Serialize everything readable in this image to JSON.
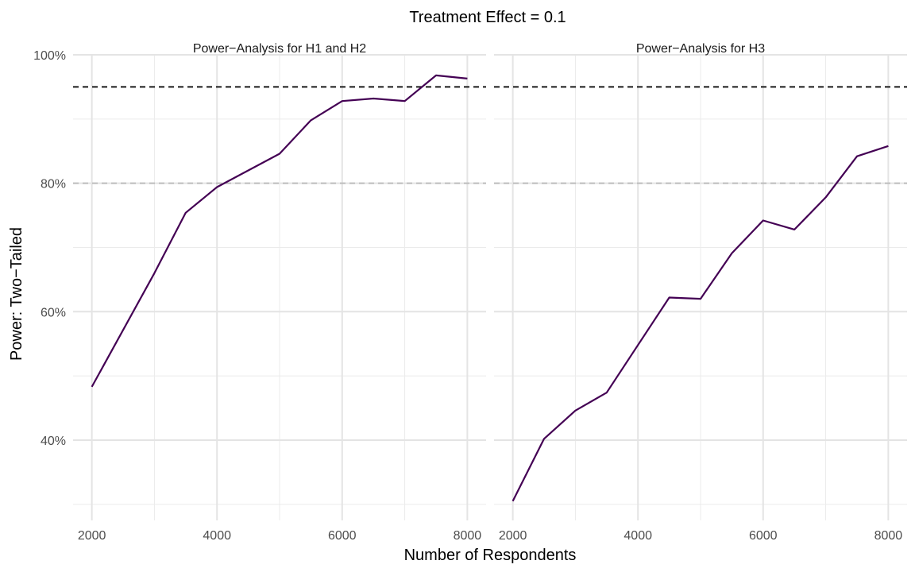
{
  "chart_data": {
    "type": "line",
    "title": "Treatment Effect = 0.1",
    "xlabel": "Number of Respondents",
    "ylabel": "Power: Two−Tailed",
    "xlim": [
      1700,
      8300
    ],
    "ylim": [
      27.5,
      100
    ],
    "x_ticks": [
      2000,
      4000,
      6000,
      8000
    ],
    "y_ticks": [
      40,
      60,
      80,
      100
    ],
    "y_tick_labels": [
      "40%",
      "60%",
      "80%",
      "100%"
    ],
    "reference_lines": [
      {
        "y": 95,
        "style": "dashed",
        "color": "#1a1a1a"
      },
      {
        "y": 80,
        "style": "dashed",
        "color": "#bdbdbd"
      }
    ],
    "grid": true,
    "line_color": "#440154",
    "panels": [
      {
        "title": "Power−Analysis for H1 and H2",
        "x": [
          2000,
          3000,
          3500,
          4000,
          5000,
          5500,
          6000,
          6500,
          7000,
          7500,
          8000
        ],
        "y": [
          48.3,
          66.0,
          75.4,
          79.4,
          84.6,
          89.8,
          92.8,
          93.2,
          92.8,
          96.8,
          96.3
        ]
      },
      {
        "title": "Power−Analysis for H3",
        "x": [
          2000,
          2500,
          3000,
          3500,
          4000,
          4500,
          5000,
          5500,
          6000,
          6500,
          7000,
          7500,
          8000
        ],
        "y": [
          30.5,
          40.2,
          44.6,
          47.4,
          54.8,
          62.2,
          62.0,
          69.1,
          74.2,
          72.8,
          77.8,
          84.2,
          85.8
        ]
      }
    ]
  }
}
